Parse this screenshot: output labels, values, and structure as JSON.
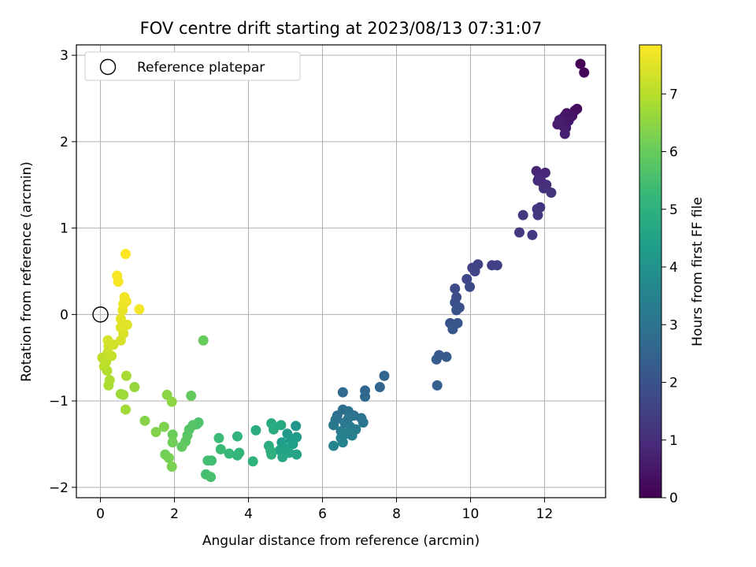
{
  "chart_data": {
    "type": "scatter",
    "title": "FOV centre drift starting at 2023/08/13 07:31:07",
    "xlabel": "Angular distance from reference (arcmin)",
    "ylabel": "Rotation from reference (arcmin)",
    "xlim": [
      -0.65,
      13.65
    ],
    "ylim": [
      -2.12,
      3.12
    ],
    "xticks": [
      0,
      2,
      4,
      6,
      8,
      10,
      12
    ],
    "yticks": [
      -2,
      -1,
      0,
      1,
      2,
      3
    ],
    "grid": true,
    "legend": {
      "placement": "top-left",
      "entries": [
        "Reference platepar"
      ]
    },
    "reference_point": {
      "x": 0,
      "y": 0
    },
    "colorbar": {
      "label": "Hours from first FF file",
      "range": [
        0,
        7.85
      ],
      "ticks": [
        0,
        1,
        2,
        3,
        4,
        5,
        6,
        7
      ],
      "colormap": "viridis"
    },
    "colormap_stops": [
      "#440154",
      "#482878",
      "#3e4989",
      "#31688e",
      "#26828e",
      "#1f9e89",
      "#35b779",
      "#6ece58",
      "#b5de2b",
      "#fde725"
    ],
    "points": [
      {
        "x": 12.97,
        "y": 2.9,
        "c": 0.05
      },
      {
        "x": 13.07,
        "y": 2.8,
        "c": 0.1
      },
      {
        "x": 12.88,
        "y": 2.38,
        "c": 0.25
      },
      {
        "x": 12.82,
        "y": 2.36,
        "c": 0.3
      },
      {
        "x": 12.6,
        "y": 2.33,
        "c": 0.35
      },
      {
        "x": 12.75,
        "y": 2.3,
        "c": 0.4
      },
      {
        "x": 12.45,
        "y": 2.26,
        "c": 0.45
      },
      {
        "x": 12.55,
        "y": 2.3,
        "c": 0.5
      },
      {
        "x": 12.35,
        "y": 2.2,
        "c": 0.55
      },
      {
        "x": 12.58,
        "y": 2.16,
        "c": 0.6
      },
      {
        "x": 12.5,
        "y": 2.18,
        "c": 0.62
      },
      {
        "x": 12.4,
        "y": 2.25,
        "c": 0.65
      },
      {
        "x": 12.55,
        "y": 2.09,
        "c": 0.68
      },
      {
        "x": 12.7,
        "y": 2.28,
        "c": 0.42
      },
      {
        "x": 12.65,
        "y": 2.24,
        "c": 0.5
      },
      {
        "x": 11.78,
        "y": 1.66,
        "c": 0.8
      },
      {
        "x": 12.02,
        "y": 1.64,
        "c": 0.85
      },
      {
        "x": 11.9,
        "y": 1.6,
        "c": 0.9
      },
      {
        "x": 11.82,
        "y": 1.55,
        "c": 0.95
      },
      {
        "x": 11.95,
        "y": 1.52,
        "c": 1.0
      },
      {
        "x": 12.05,
        "y": 1.5,
        "c": 1.05
      },
      {
        "x": 11.98,
        "y": 1.46,
        "c": 1.1
      },
      {
        "x": 12.18,
        "y": 1.41,
        "c": 1.15
      },
      {
        "x": 11.85,
        "y": 1.58,
        "c": 0.92
      },
      {
        "x": 11.88,
        "y": 1.24,
        "c": 1.2
      },
      {
        "x": 11.8,
        "y": 1.22,
        "c": 1.25
      },
      {
        "x": 11.42,
        "y": 1.15,
        "c": 1.3
      },
      {
        "x": 11.82,
        "y": 1.15,
        "c": 1.32
      },
      {
        "x": 11.32,
        "y": 0.95,
        "c": 1.35
      },
      {
        "x": 11.67,
        "y": 0.92,
        "c": 1.38
      },
      {
        "x": 10.58,
        "y": 0.57,
        "c": 1.45
      },
      {
        "x": 10.72,
        "y": 0.57,
        "c": 1.5
      },
      {
        "x": 10.2,
        "y": 0.58,
        "c": 1.55
      },
      {
        "x": 10.05,
        "y": 0.54,
        "c": 1.6
      },
      {
        "x": 10.12,
        "y": 0.5,
        "c": 1.65
      },
      {
        "x": 9.9,
        "y": 0.41,
        "c": 1.7
      },
      {
        "x": 9.98,
        "y": 0.32,
        "c": 1.75
      },
      {
        "x": 9.58,
        "y": 0.3,
        "c": 1.8
      },
      {
        "x": 9.62,
        "y": 0.2,
        "c": 1.85
      },
      {
        "x": 9.58,
        "y": 0.14,
        "c": 1.9
      },
      {
        "x": 9.7,
        "y": 0.08,
        "c": 1.95
      },
      {
        "x": 9.62,
        "y": 0.05,
        "c": 2.0
      },
      {
        "x": 9.45,
        "y": -0.1,
        "c": 2.05
      },
      {
        "x": 9.65,
        "y": -0.1,
        "c": 2.1
      },
      {
        "x": 9.52,
        "y": -0.17,
        "c": 2.15
      },
      {
        "x": 9.15,
        "y": -0.47,
        "c": 2.2
      },
      {
        "x": 9.35,
        "y": -0.49,
        "c": 2.25
      },
      {
        "x": 9.08,
        "y": -0.52,
        "c": 2.3
      },
      {
        "x": 9.1,
        "y": -0.82,
        "c": 2.35
      },
      {
        "x": 7.67,
        "y": -0.71,
        "c": 2.5
      },
      {
        "x": 7.55,
        "y": -0.84,
        "c": 2.55
      },
      {
        "x": 7.15,
        "y": -0.88,
        "c": 2.6
      },
      {
        "x": 7.15,
        "y": -0.95,
        "c": 2.65
      },
      {
        "x": 6.55,
        "y": -0.9,
        "c": 2.7
      },
      {
        "x": 6.55,
        "y": -1.1,
        "c": 2.8
      },
      {
        "x": 6.4,
        "y": -1.17,
        "c": 2.85
      },
      {
        "x": 6.7,
        "y": -1.12,
        "c": 2.9
      },
      {
        "x": 6.35,
        "y": -1.22,
        "c": 2.95
      },
      {
        "x": 6.85,
        "y": -1.17,
        "c": 3.0
      },
      {
        "x": 7.05,
        "y": -1.2,
        "c": 3.05
      },
      {
        "x": 7.1,
        "y": -1.25,
        "c": 3.1
      },
      {
        "x": 6.3,
        "y": -1.28,
        "c": 3.15
      },
      {
        "x": 6.6,
        "y": -1.25,
        "c": 3.2
      },
      {
        "x": 6.75,
        "y": -1.3,
        "c": 3.25
      },
      {
        "x": 6.9,
        "y": -1.33,
        "c": 3.3
      },
      {
        "x": 6.5,
        "y": -1.35,
        "c": 3.35
      },
      {
        "x": 6.65,
        "y": -1.38,
        "c": 3.4
      },
      {
        "x": 6.8,
        "y": -1.4,
        "c": 3.42
      },
      {
        "x": 6.5,
        "y": -1.43,
        "c": 3.45
      },
      {
        "x": 6.55,
        "y": -1.48,
        "c": 3.5
      },
      {
        "x": 6.3,
        "y": -1.52,
        "c": 3.55
      },
      {
        "x": 6.7,
        "y": -1.2,
        "c": 3.1
      },
      {
        "x": 5.28,
        "y": -1.29,
        "c": 4.1
      },
      {
        "x": 5.05,
        "y": -1.38,
        "c": 4.2
      },
      {
        "x": 5.3,
        "y": -1.42,
        "c": 4.25
      },
      {
        "x": 5.15,
        "y": -1.45,
        "c": 4.3
      },
      {
        "x": 4.9,
        "y": -1.48,
        "c": 4.35
      },
      {
        "x": 5.2,
        "y": -1.5,
        "c": 4.4
      },
      {
        "x": 5.0,
        "y": -1.55,
        "c": 4.45
      },
      {
        "x": 4.85,
        "y": -1.57,
        "c": 4.5
      },
      {
        "x": 5.1,
        "y": -1.6,
        "c": 4.55
      },
      {
        "x": 5.3,
        "y": -1.62,
        "c": 4.6
      },
      {
        "x": 4.92,
        "y": -1.65,
        "c": 4.65
      },
      {
        "x": 4.88,
        "y": -1.28,
        "c": 4.7
      },
      {
        "x": 4.62,
        "y": -1.26,
        "c": 4.75
      },
      {
        "x": 4.68,
        "y": -1.33,
        "c": 4.8
      },
      {
        "x": 4.2,
        "y": -1.34,
        "c": 4.85
      },
      {
        "x": 4.55,
        "y": -1.52,
        "c": 4.9
      },
      {
        "x": 4.6,
        "y": -1.58,
        "c": 4.95
      },
      {
        "x": 4.62,
        "y": -1.62,
        "c": 5.0
      },
      {
        "x": 4.12,
        "y": -1.7,
        "c": 5.05
      },
      {
        "x": 3.7,
        "y": -1.41,
        "c": 5.1
      },
      {
        "x": 3.75,
        "y": -1.6,
        "c": 5.15
      },
      {
        "x": 3.7,
        "y": -1.63,
        "c": 5.2
      },
      {
        "x": 3.48,
        "y": -1.61,
        "c": 5.25
      },
      {
        "x": 3.25,
        "y": -1.56,
        "c": 5.3
      },
      {
        "x": 3.2,
        "y": -1.43,
        "c": 5.35
      },
      {
        "x": 3.0,
        "y": -1.69,
        "c": 5.4
      },
      {
        "x": 2.9,
        "y": -1.69,
        "c": 5.45
      },
      {
        "x": 2.85,
        "y": -1.85,
        "c": 5.5
      },
      {
        "x": 2.98,
        "y": -1.88,
        "c": 5.55
      },
      {
        "x": 2.65,
        "y": -1.25,
        "c": 5.6
      },
      {
        "x": 2.6,
        "y": -1.27,
        "c": 5.65
      },
      {
        "x": 2.5,
        "y": -1.28,
        "c": 5.7
      },
      {
        "x": 2.4,
        "y": -1.33,
        "c": 5.75
      },
      {
        "x": 2.35,
        "y": -1.4,
        "c": 5.8
      },
      {
        "x": 2.3,
        "y": -1.47,
        "c": 5.85
      },
      {
        "x": 2.2,
        "y": -1.53,
        "c": 5.9
      },
      {
        "x": 2.45,
        "y": -0.94,
        "c": 5.95
      },
      {
        "x": 2.78,
        "y": -0.3,
        "c": 6.0
      },
      {
        "x": 1.95,
        "y": -1.39,
        "c": 6.05
      },
      {
        "x": 1.95,
        "y": -1.48,
        "c": 6.1
      },
      {
        "x": 1.75,
        "y": -1.62,
        "c": 6.15
      },
      {
        "x": 1.85,
        "y": -1.66,
        "c": 6.2
      },
      {
        "x": 1.93,
        "y": -1.76,
        "c": 6.25
      },
      {
        "x": 1.72,
        "y": -1.3,
        "c": 6.3
      },
      {
        "x": 1.5,
        "y": -1.36,
        "c": 6.35
      },
      {
        "x": 1.2,
        "y": -1.23,
        "c": 6.4
      },
      {
        "x": 1.8,
        "y": -0.93,
        "c": 6.45
      },
      {
        "x": 1.93,
        "y": -1.01,
        "c": 6.5
      },
      {
        "x": 0.92,
        "y": -0.84,
        "c": 6.6
      },
      {
        "x": 0.55,
        "y": -0.92,
        "c": 6.65
      },
      {
        "x": 0.62,
        "y": -0.93,
        "c": 6.7
      },
      {
        "x": 0.68,
        "y": -1.1,
        "c": 6.75
      },
      {
        "x": 0.7,
        "y": -0.71,
        "c": 6.8
      },
      {
        "x": 0.22,
        "y": -0.82,
        "c": 6.85
      },
      {
        "x": 0.25,
        "y": -0.76,
        "c": 6.9
      },
      {
        "x": 0.18,
        "y": -0.65,
        "c": 6.95
      },
      {
        "x": 0.1,
        "y": -0.6,
        "c": 7.0
      },
      {
        "x": 0.15,
        "y": -0.55,
        "c": 7.05
      },
      {
        "x": 0.05,
        "y": -0.5,
        "c": 7.1
      },
      {
        "x": 0.3,
        "y": -0.48,
        "c": 7.15
      },
      {
        "x": 0.2,
        "y": -0.44,
        "c": 7.2
      },
      {
        "x": 0.22,
        "y": -0.37,
        "c": 7.25
      },
      {
        "x": 0.35,
        "y": -0.35,
        "c": 7.3
      },
      {
        "x": 0.2,
        "y": -0.3,
        "c": 7.35
      },
      {
        "x": 0.55,
        "y": -0.3,
        "c": 7.38
      },
      {
        "x": 0.62,
        "y": -0.22,
        "c": 7.4
      },
      {
        "x": 0.55,
        "y": -0.15,
        "c": 7.45
      },
      {
        "x": 0.72,
        "y": -0.12,
        "c": 7.5
      },
      {
        "x": 0.55,
        "y": -0.05,
        "c": 7.55
      },
      {
        "x": 0.6,
        "y": 0.05,
        "c": 7.6
      },
      {
        "x": 0.62,
        "y": 0.12,
        "c": 7.65
      },
      {
        "x": 0.7,
        "y": 0.15,
        "c": 7.68
      },
      {
        "x": 0.65,
        "y": 0.2,
        "c": 7.7
      },
      {
        "x": 1.05,
        "y": 0.06,
        "c": 7.72
      },
      {
        "x": 0.48,
        "y": 0.38,
        "c": 7.75
      },
      {
        "x": 0.45,
        "y": 0.45,
        "c": 7.8
      },
      {
        "x": 0.68,
        "y": 0.7,
        "c": 7.85
      }
    ]
  }
}
